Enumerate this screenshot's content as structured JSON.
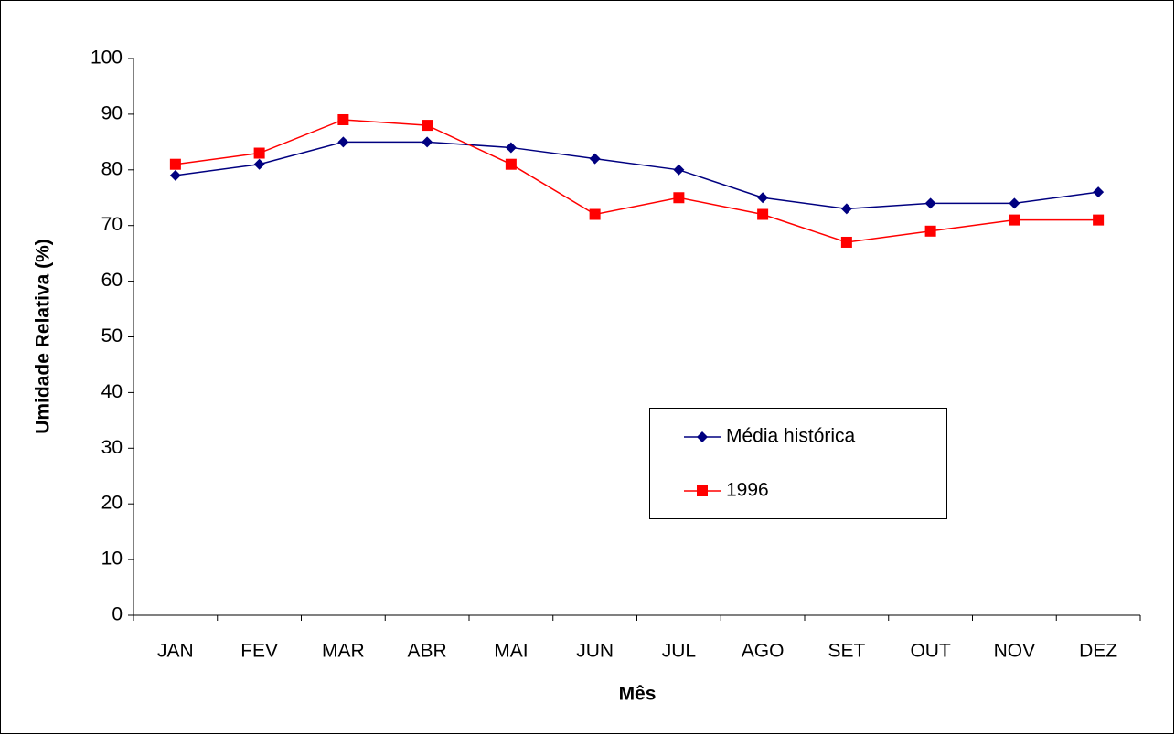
{
  "chart_data": {
    "type": "line",
    "xlabel": "Mês",
    "ylabel": "Umidade Relativa (%)",
    "categories": [
      "JAN",
      "FEV",
      "MAR",
      "ABR",
      "MAI",
      "JUN",
      "JUL",
      "AGO",
      "SET",
      "OUT",
      "NOV",
      "DEZ"
    ],
    "series": [
      {
        "name": "Média histórica",
        "color": "#000080",
        "marker": "diamond",
        "values": [
          79,
          81,
          85,
          85,
          84,
          82,
          80,
          75,
          73,
          74,
          74,
          76
        ]
      },
      {
        "name": "1996",
        "color": "#ff0000",
        "marker": "square",
        "values": [
          81,
          83,
          89,
          88,
          81,
          72,
          75,
          72,
          67,
          69,
          71,
          71
        ]
      }
    ],
    "ylim": [
      0,
      100
    ],
    "yticks": [
      0,
      10,
      20,
      30,
      40,
      50,
      60,
      70,
      80,
      90,
      100
    ],
    "grid": false
  }
}
